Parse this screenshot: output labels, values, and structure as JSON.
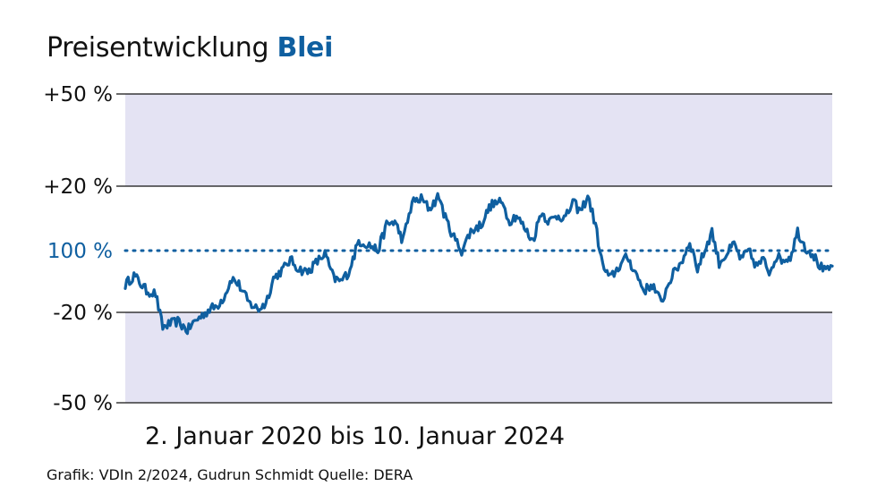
{
  "title": {
    "prefix": "Preisentwicklung",
    "metal": "Blei"
  },
  "date_range": "2. Januar 2020 bis 10. Januar 2024",
  "source": "Grafik: VDIn 2/2024, Gudrun Schmidt Quelle: DERA",
  "colors": {
    "accent": "#0f5fa0",
    "band": "#e4e3f3",
    "line": "#0f5fa0"
  },
  "chart_data": {
    "type": "line",
    "title": "Preisentwicklung Blei",
    "x_start": "2020-01-02",
    "x_end": "2024-01-10",
    "y_unit": "% change vs. reference (100 %)",
    "y_ticks": [
      {
        "value": 50,
        "label": "+50 %"
      },
      {
        "value": 20,
        "label": "+20 %"
      },
      {
        "value": 0,
        "label": "100 %",
        "reference": true
      },
      {
        "value": -20,
        "label": "-20 %"
      },
      {
        "value": -50,
        "label": "-50 %"
      }
    ],
    "ylim": [
      -50,
      50
    ],
    "shaded_bands": [
      [
        20,
        50
      ],
      [
        -50,
        -20
      ]
    ],
    "reference_line": {
      "value": 0,
      "style": "dotted"
    },
    "series": [
      {
        "x": [
          "2020-01-02",
          "2020-01-20",
          "2020-02-15",
          "2020-03-05",
          "2020-03-20",
          "2020-04-01",
          "2020-04-20",
          "2020-05-10",
          "2020-05-25",
          "2020-06-10",
          "2020-06-25",
          "2020-07-10",
          "2020-07-25",
          "2020-08-10",
          "2020-08-25",
          "2020-09-15",
          "2020-10-05",
          "2020-10-20",
          "2020-11-05",
          "2020-11-25",
          "2020-12-10",
          "2020-12-28",
          "2021-01-15",
          "2021-02-01",
          "2021-02-20",
          "2021-03-10",
          "2021-03-25",
          "2021-04-10",
          "2021-05-01",
          "2021-05-20",
          "2021-06-10",
          "2021-06-28",
          "2021-07-15",
          "2021-08-01",
          "2021-08-20",
          "2021-09-08",
          "2021-09-25",
          "2021-10-15",
          "2021-10-28",
          "2021-11-15",
          "2021-12-01",
          "2021-12-20",
          "2022-01-10",
          "2022-01-30",
          "2022-02-15",
          "2022-03-01",
          "2022-03-08",
          "2022-03-25",
          "2022-04-10",
          "2022-04-28",
          "2022-05-15",
          "2022-06-01",
          "2022-06-20",
          "2022-07-05",
          "2022-07-20",
          "2022-08-05",
          "2022-08-20",
          "2022-09-05",
          "2022-09-20",
          "2022-10-05",
          "2022-10-25",
          "2022-11-10",
          "2022-11-30",
          "2022-12-15",
          "2023-01-01",
          "2023-01-20",
          "2023-02-05",
          "2023-02-20",
          "2023-03-05",
          "2023-03-20",
          "2023-04-05",
          "2023-04-20",
          "2023-05-05",
          "2023-05-20",
          "2023-06-05",
          "2023-06-20",
          "2023-07-05",
          "2023-07-20",
          "2023-08-05",
          "2023-08-20",
          "2023-09-01",
          "2023-09-15",
          "2023-09-30",
          "2023-10-15",
          "2023-10-30",
          "2023-11-15",
          "2023-11-30",
          "2023-12-15",
          "2023-12-28",
          "2024-01-10"
        ],
        "y": [
          -11,
          -8,
          -13,
          -14,
          -25,
          -24,
          -23,
          -26,
          -23,
          -21,
          -19,
          -18,
          -15,
          -9,
          -11,
          -17,
          -19,
          -17,
          -9,
          -6,
          -3,
          -6,
          -7,
          -4,
          -1,
          -9,
          -10,
          -7,
          3,
          2,
          0,
          8,
          9,
          3,
          15,
          16,
          13,
          17,
          10,
          4,
          0,
          6,
          8,
          14,
          15,
          14,
          9,
          11,
          7,
          3,
          12,
          9,
          11,
          10,
          15,
          12,
          17,
          8,
          -5,
          -9,
          -5,
          -2,
          -8,
          -13,
          -11,
          -17,
          -10,
          -6,
          -3,
          3,
          -6,
          0,
          6,
          -4,
          -1,
          2,
          -3,
          0,
          -5,
          -3,
          -7,
          -2,
          -3,
          -2,
          6,
          1,
          -1,
          -5,
          -7,
          -5
        ]
      }
    ]
  }
}
